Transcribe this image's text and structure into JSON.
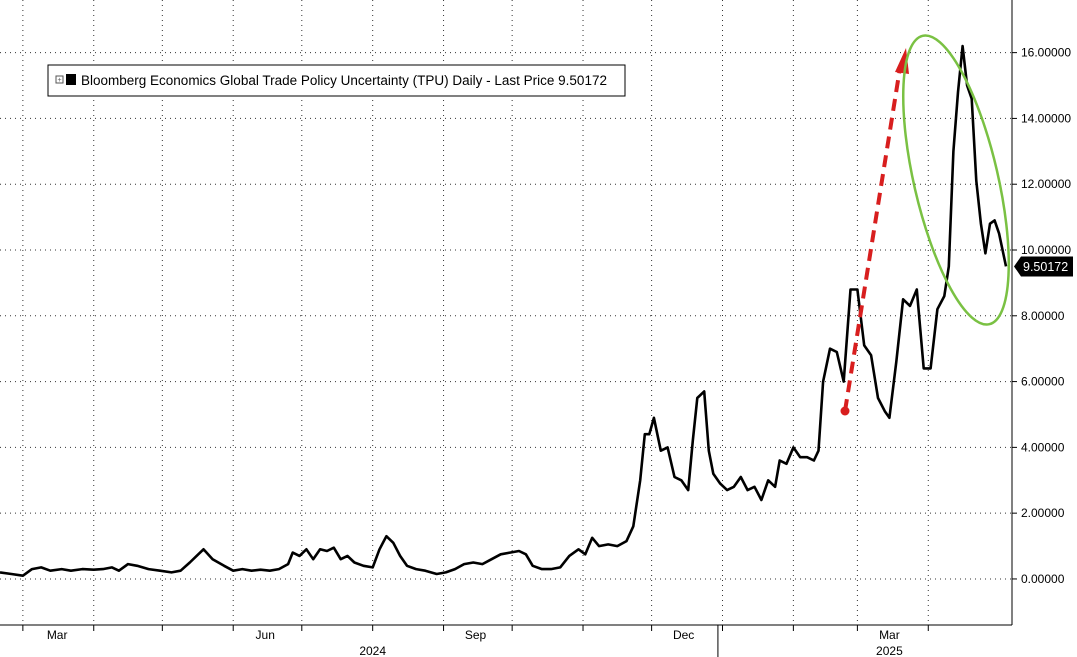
{
  "chart_data": {
    "type": "line",
    "legend": {
      "text": "Bloomberg Economics Global Trade Policy Uncertainty (TPU) Daily - Last Price 9.50172",
      "placement": "top-left"
    },
    "last_price_label": "9.50172",
    "y_axis": {
      "side": "right",
      "range": [
        -1.4,
        17.6
      ],
      "ticks": [
        0,
        2,
        4,
        6,
        8,
        10,
        12,
        14,
        16
      ],
      "tick_labels": [
        "0.00000",
        "2.00000",
        "4.00000",
        "6.00000",
        "8.00000",
        "10.00000",
        "12.00000",
        "14.00000",
        "16.00000"
      ]
    },
    "x_axis": {
      "range": [
        "2024-02-20",
        "2025-04-28"
      ],
      "month_labels": [
        {
          "label": "Mar",
          "date": "2024-03-16"
        },
        {
          "label": "Jun",
          "date": "2024-06-15"
        },
        {
          "label": "Sep",
          "date": "2024-09-15"
        },
        {
          "label": "Dec",
          "date": "2024-12-15"
        },
        {
          "label": "Mar",
          "date": "2025-03-15"
        }
      ],
      "year_labels": [
        {
          "label": "2024",
          "date": "2024-08-01"
        },
        {
          "label": "2025",
          "date": "2025-03-15"
        }
      ],
      "year_divider": "2024-12-30",
      "gridlines": [
        "2024-03-01",
        "2024-04-01",
        "2024-05-01",
        "2024-06-01",
        "2024-07-01",
        "2024-08-01",
        "2024-09-01",
        "2024-10-01",
        "2024-11-01",
        "2024-12-01",
        "2025-01-01",
        "2025-02-01",
        "2025-03-01",
        "2025-04-01"
      ]
    },
    "grid": true,
    "colors": {
      "line": "#000000",
      "arrow": "#d81e1e",
      "ellipse": "#7ac143"
    },
    "series": [
      {
        "points": [
          [
            "2024-02-20",
            0.2
          ],
          [
            "2024-02-25",
            0.15
          ],
          [
            "2024-03-01",
            0.1
          ],
          [
            "2024-03-05",
            0.3
          ],
          [
            "2024-03-09",
            0.35
          ],
          [
            "2024-03-13",
            0.25
          ],
          [
            "2024-03-18",
            0.3
          ],
          [
            "2024-03-22",
            0.25
          ],
          [
            "2024-03-27",
            0.3
          ],
          [
            "2024-04-01",
            0.28
          ],
          [
            "2024-04-05",
            0.3
          ],
          [
            "2024-04-09",
            0.35
          ],
          [
            "2024-04-12",
            0.25
          ],
          [
            "2024-04-16",
            0.45
          ],
          [
            "2024-04-20",
            0.4
          ],
          [
            "2024-04-25",
            0.3
          ],
          [
            "2024-04-30",
            0.25
          ],
          [
            "2024-05-05",
            0.2
          ],
          [
            "2024-05-09",
            0.25
          ],
          [
            "2024-05-13",
            0.5
          ],
          [
            "2024-05-16",
            0.7
          ],
          [
            "2024-05-19",
            0.9
          ],
          [
            "2024-05-23",
            0.6
          ],
          [
            "2024-05-28",
            0.4
          ],
          [
            "2024-06-01",
            0.25
          ],
          [
            "2024-06-05",
            0.3
          ],
          [
            "2024-06-09",
            0.25
          ],
          [
            "2024-06-13",
            0.28
          ],
          [
            "2024-06-17",
            0.25
          ],
          [
            "2024-06-21",
            0.3
          ],
          [
            "2024-06-25",
            0.45
          ],
          [
            "2024-06-27",
            0.8
          ],
          [
            "2024-06-30",
            0.7
          ],
          [
            "2024-07-03",
            0.9
          ],
          [
            "2024-07-06",
            0.6
          ],
          [
            "2024-07-09",
            0.9
          ],
          [
            "2024-07-12",
            0.85
          ],
          [
            "2024-07-15",
            0.95
          ],
          [
            "2024-07-18",
            0.6
          ],
          [
            "2024-07-21",
            0.7
          ],
          [
            "2024-07-24",
            0.5
          ],
          [
            "2024-07-28",
            0.4
          ],
          [
            "2024-08-01",
            0.35
          ],
          [
            "2024-08-04",
            0.9
          ],
          [
            "2024-08-07",
            1.3
          ],
          [
            "2024-08-10",
            1.1
          ],
          [
            "2024-08-13",
            0.7
          ],
          [
            "2024-08-16",
            0.4
          ],
          [
            "2024-08-20",
            0.3
          ],
          [
            "2024-08-24",
            0.25
          ],
          [
            "2024-08-29",
            0.15
          ],
          [
            "2024-09-02",
            0.2
          ],
          [
            "2024-09-06",
            0.3
          ],
          [
            "2024-09-10",
            0.45
          ],
          [
            "2024-09-14",
            0.5
          ],
          [
            "2024-09-18",
            0.45
          ],
          [
            "2024-09-22",
            0.6
          ],
          [
            "2024-09-26",
            0.75
          ],
          [
            "2024-09-30",
            0.8
          ],
          [
            "2024-10-04",
            0.85
          ],
          [
            "2024-10-07",
            0.75
          ],
          [
            "2024-10-10",
            0.4
          ],
          [
            "2024-10-14",
            0.3
          ],
          [
            "2024-10-18",
            0.3
          ],
          [
            "2024-10-22",
            0.35
          ],
          [
            "2024-10-26",
            0.7
          ],
          [
            "2024-10-30",
            0.9
          ],
          [
            "2024-11-02",
            0.75
          ],
          [
            "2024-11-05",
            1.25
          ],
          [
            "2024-11-08",
            1.0
          ],
          [
            "2024-11-12",
            1.05
          ],
          [
            "2024-11-16",
            1.0
          ],
          [
            "2024-11-20",
            1.15
          ],
          [
            "2024-11-23",
            1.6
          ],
          [
            "2024-11-26",
            3.0
          ],
          [
            "2024-11-28",
            4.4
          ],
          [
            "2024-11-30",
            4.4
          ],
          [
            "2024-12-02",
            4.9
          ],
          [
            "2024-12-05",
            3.9
          ],
          [
            "2024-12-08",
            4.0
          ],
          [
            "2024-12-11",
            3.1
          ],
          [
            "2024-12-14",
            3.0
          ],
          [
            "2024-12-17",
            2.7
          ],
          [
            "2024-12-19",
            4.2
          ],
          [
            "2024-12-21",
            5.5
          ],
          [
            "2024-12-24",
            5.7
          ],
          [
            "2024-12-26",
            3.9
          ],
          [
            "2024-12-28",
            3.2
          ],
          [
            "2024-12-31",
            2.9
          ],
          [
            "2025-01-03",
            2.7
          ],
          [
            "2025-01-06",
            2.8
          ],
          [
            "2025-01-09",
            3.1
          ],
          [
            "2025-01-12",
            2.7
          ],
          [
            "2025-01-15",
            2.8
          ],
          [
            "2025-01-18",
            2.4
          ],
          [
            "2025-01-21",
            3.0
          ],
          [
            "2025-01-24",
            2.8
          ],
          [
            "2025-01-26",
            3.6
          ],
          [
            "2025-01-29",
            3.5
          ],
          [
            "2025-02-01",
            4.0
          ],
          [
            "2025-02-04",
            3.7
          ],
          [
            "2025-02-07",
            3.7
          ],
          [
            "2025-02-10",
            3.6
          ],
          [
            "2025-02-12",
            3.9
          ],
          [
            "2025-02-14",
            6.0
          ],
          [
            "2025-02-17",
            7.0
          ],
          [
            "2025-02-20",
            6.9
          ],
          [
            "2025-02-23",
            6.0
          ],
          [
            "2025-02-26",
            8.8
          ],
          [
            "2025-03-01",
            8.8
          ],
          [
            "2025-03-04",
            7.1
          ],
          [
            "2025-03-07",
            6.8
          ],
          [
            "2025-03-10",
            5.5
          ],
          [
            "2025-03-13",
            5.1
          ],
          [
            "2025-03-15",
            4.9
          ],
          [
            "2025-03-18",
            6.6
          ],
          [
            "2025-03-21",
            8.5
          ],
          [
            "2025-03-24",
            8.3
          ],
          [
            "2025-03-27",
            8.8
          ],
          [
            "2025-03-30",
            6.4
          ],
          [
            "2025-04-02",
            6.4
          ],
          [
            "2025-04-05",
            8.2
          ],
          [
            "2025-04-08",
            8.6
          ],
          [
            "2025-04-10",
            9.5
          ],
          [
            "2025-04-12",
            13.0
          ],
          [
            "2025-04-14",
            14.8
          ],
          [
            "2025-04-16",
            16.2
          ],
          [
            "2025-04-18",
            15.0
          ],
          [
            "2025-04-20",
            14.6
          ],
          [
            "2025-04-22",
            12.1
          ],
          [
            "2025-04-24",
            10.8
          ],
          [
            "2025-04-26",
            9.9
          ],
          [
            "2025-04-28",
            10.8
          ],
          [
            "2025-04-30",
            10.9
          ],
          [
            "2025-05-02",
            10.5
          ],
          [
            "2025-05-05",
            9.5
          ]
        ]
      }
    ]
  }
}
